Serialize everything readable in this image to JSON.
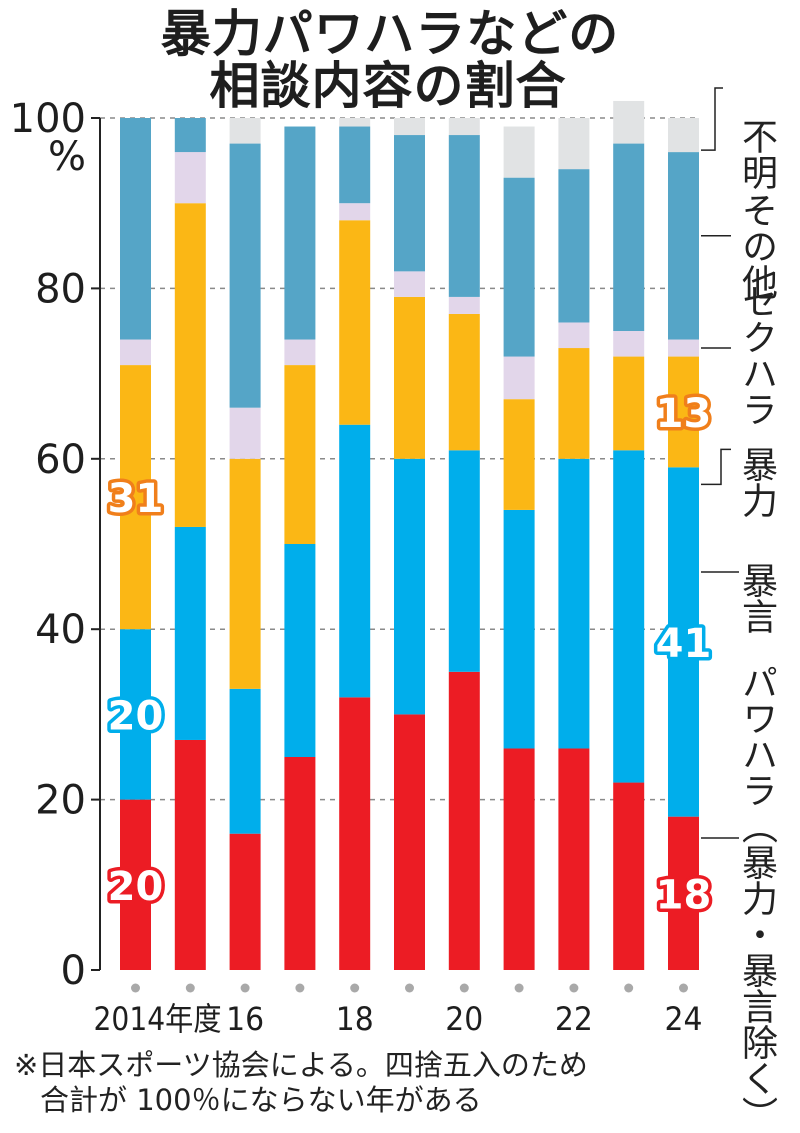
{
  "title_lines": [
    "暴力パワハラなどの",
    "相談内容の割合"
  ],
  "note_lines": [
    "※日本スポーツ協会による。四捨五入のため",
    "合計が 100％にならない年がある"
  ],
  "colors": {
    "powerharassment": "#ec1c24",
    "verbal_abuse": "#00aeeb",
    "violence": "#fbb715",
    "sexual_harassment": "#e2d6ea",
    "other": "#55a5c7",
    "unknown": "#e1e3e4",
    "label_orange": "#f07f1b"
  },
  "chart_data": {
    "type": "bar",
    "stacked": true,
    "title": "暴力パワハラなどの相談内容の割合",
    "xlabel": "",
    "ylabel": "%",
    "ylim": [
      0,
      100
    ],
    "yticks": [
      0,
      20,
      40,
      60,
      80,
      100
    ],
    "ytick_labels": [
      "0",
      "20",
      "40",
      "60",
      "80",
      "100"
    ],
    "yunit_label": "%",
    "grid": true,
    "categories": [
      "2014",
      "2015",
      "2016",
      "2017",
      "2018",
      "2019",
      "2020",
      "2021",
      "2022",
      "2023",
      "2024"
    ],
    "xtick_labels": [
      "2014年度",
      "",
      "16",
      "",
      "18",
      "",
      "20",
      "",
      "22",
      "",
      "24"
    ],
    "legend_placement": "right",
    "series": [
      {
        "key": "powerharassment",
        "name": "パワハラ（暴力・暴言除く）",
        "values": [
          20,
          27,
          16,
          25,
          32,
          30,
          35,
          26,
          26,
          22,
          18
        ]
      },
      {
        "key": "verbal_abuse",
        "name": "暴言",
        "values": [
          20,
          25,
          17,
          25,
          32,
          30,
          26,
          28,
          34,
          39,
          41
        ]
      },
      {
        "key": "violence",
        "name": "暴力",
        "values": [
          31,
          38,
          27,
          21,
          24,
          19,
          16,
          13,
          13,
          11,
          13
        ]
      },
      {
        "key": "sexual_harassment",
        "name": "セクハラ",
        "values": [
          3,
          6,
          6,
          3,
          2,
          3,
          2,
          5,
          3,
          3,
          2
        ]
      },
      {
        "key": "other",
        "name": "その他",
        "values": [
          26,
          4,
          31,
          25,
          9,
          16,
          19,
          21,
          18,
          22,
          22
        ]
      },
      {
        "key": "unknown",
        "name": "不明",
        "values": [
          0,
          0,
          3,
          0,
          1,
          2,
          2,
          6,
          6,
          5,
          4
        ]
      }
    ],
    "data_labels": [
      {
        "series": "violence",
        "category": "2014",
        "text": "31",
        "color": "orange"
      },
      {
        "series": "verbal_abuse",
        "category": "2014",
        "text": "20",
        "color": "blue"
      },
      {
        "series": "powerharassment",
        "category": "2014",
        "text": "20",
        "color": "red"
      },
      {
        "series": "violence",
        "category": "2024",
        "text": "13",
        "color": "orange"
      },
      {
        "series": "verbal_abuse",
        "category": "2024",
        "text": "41",
        "color": "blue"
      },
      {
        "series": "powerharassment",
        "category": "2024",
        "text": "18",
        "color": "red"
      }
    ]
  },
  "legend": {
    "unknown": "不明",
    "other": "その他",
    "sexual_harassment": "セクハラ",
    "violence": "暴力",
    "verbal_abuse": "暴言",
    "powerharassment": "パワハラ（暴力・暴言除く）"
  }
}
